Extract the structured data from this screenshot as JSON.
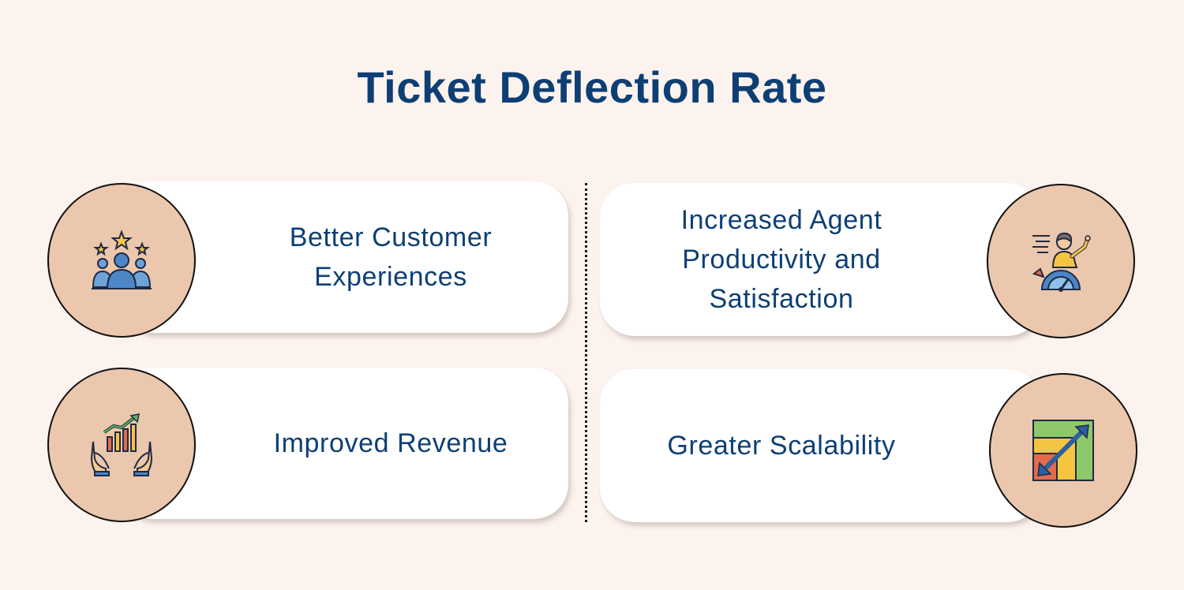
{
  "title": "Ticket Deflection Rate",
  "items": [
    {
      "label": "Better Customer\nExperiences",
      "icon": "customer-rating-icon"
    },
    {
      "label": "Increased Agent\nProductivity and\nSatisfaction",
      "icon": "agent-speedometer-icon"
    },
    {
      "label": "Improved Revenue",
      "icon": "revenue-growth-icon"
    },
    {
      "label": "Greater Scalability",
      "icon": "scalability-icon"
    }
  ],
  "colors": {
    "background": "#fdf3ee",
    "title": "#0d3f74",
    "circle": "#ebc7ad",
    "card": "#ffffff"
  }
}
